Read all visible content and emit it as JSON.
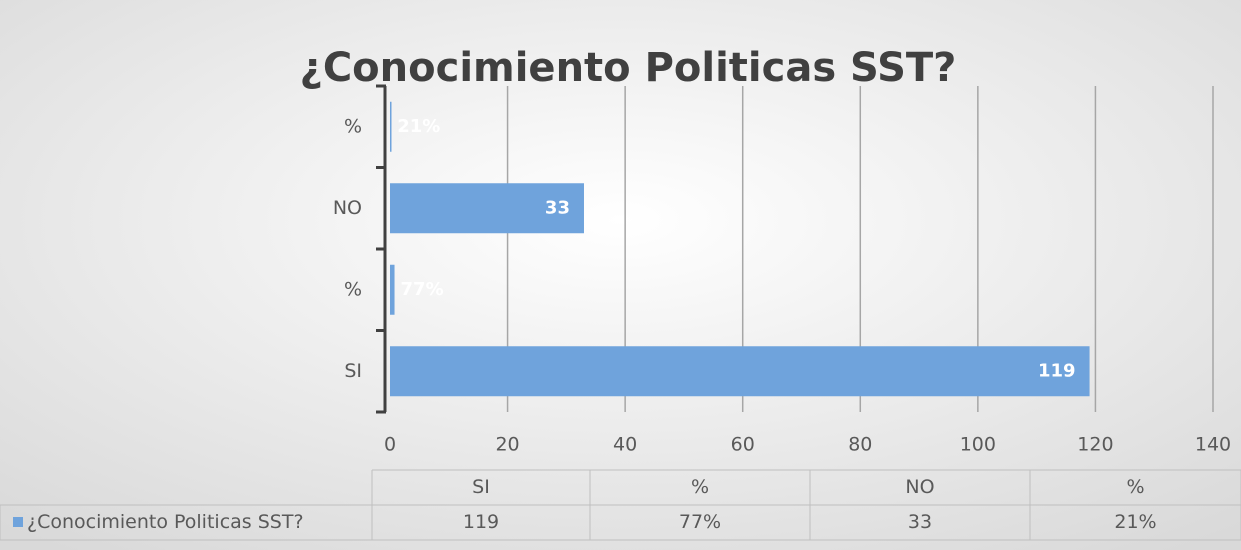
{
  "chart_data": {
    "type": "bar",
    "orientation": "horizontal",
    "title": "¿Conocimiento Politicas SST?",
    "categories": [
      "SI",
      "%",
      "NO",
      "%"
    ],
    "series": [
      {
        "name": "¿Conocimiento Politicas SST?",
        "color": "#6fa3dc",
        "values": [
          119,
          0.77,
          33,
          0.21
        ],
        "value_labels": [
          "119",
          "77%",
          "33",
          "21%"
        ]
      }
    ],
    "xlim": [
      0,
      140
    ],
    "xticks": [
      0,
      20,
      40,
      60,
      80,
      100,
      120,
      140
    ],
    "grid": true,
    "data_table": true
  }
}
